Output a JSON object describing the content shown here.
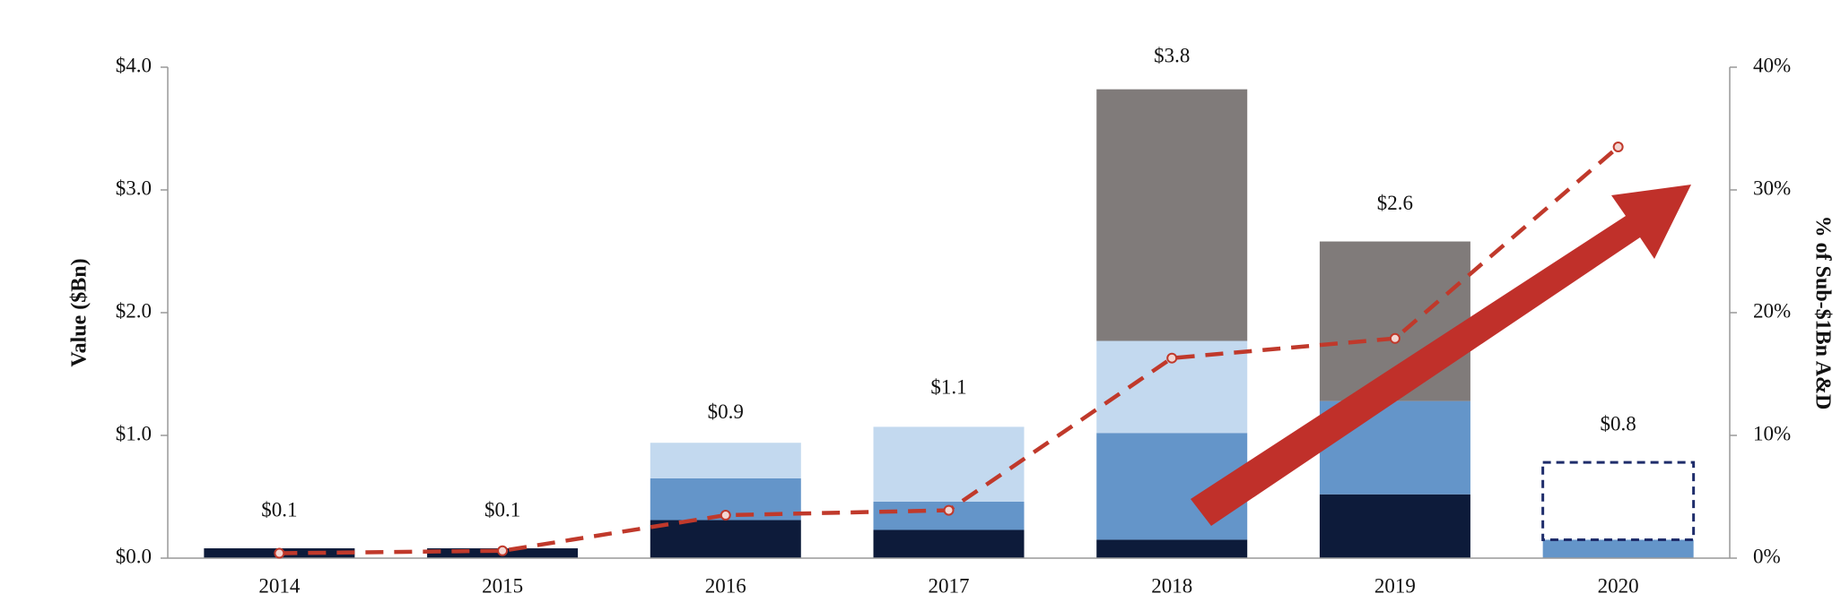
{
  "chart_data": {
    "type": "bar",
    "stacked": true,
    "y_label": "Value ($Bn)",
    "y2_label": "% of Sub-$1Bn A&D",
    "categories": [
      "2014",
      "2015",
      "2016",
      "2017",
      "2018",
      "2019",
      "2020"
    ],
    "series": [
      {
        "color": "#0d1b3a",
        "values": [
          0.08,
          0.08,
          0.31,
          0.23,
          0.15,
          0.52,
          0
        ]
      },
      {
        "color": "#6495c9",
        "values": [
          0,
          0,
          0.34,
          0.23,
          0.87,
          0.76,
          0.15
        ]
      },
      {
        "color": "#c3d9ef",
        "values": [
          0,
          0,
          0.29,
          0.61,
          0.75,
          0,
          0
        ]
      },
      {
        "color": "#807b7a",
        "values": [
          0,
          0,
          0,
          0,
          2.05,
          1.3,
          0
        ]
      },
      {
        "color": "#1f2d6b",
        "style": "dashed",
        "values": [
          null,
          null,
          null,
          null,
          null,
          null,
          0.63
        ]
      },
      {
        "type": "line",
        "axis": "y2",
        "color": "#c0392b",
        "style": "dashed",
        "values": [
          0.4,
          0.6,
          3.5,
          3.9,
          16.3,
          17.9,
          33.5
        ]
      }
    ],
    "totals": [
      0.1,
      0.1,
      0.9,
      1.1,
      3.8,
      2.6,
      0.8
    ],
    "total_labels": [
      "$0.1",
      "$0.1",
      "$0.9",
      "$1.1",
      "$3.8",
      "$2.6",
      "$0.8"
    ],
    "ylim": [
      0,
      4
    ],
    "yticks": [
      {
        "value": 0,
        "label": "$0.0"
      },
      {
        "value": 1,
        "label": "$1.0"
      },
      {
        "value": 2,
        "label": "$2.0"
      },
      {
        "value": 3,
        "label": "$3.0"
      },
      {
        "value": 4,
        "label": "$4.0"
      }
    ],
    "y2lim": [
      0,
      40
    ],
    "y2ticks": [
      {
        "value": 0,
        "label": "0%"
      },
      {
        "value": 10,
        "label": "10%"
      },
      {
        "value": 20,
        "label": "20%"
      },
      {
        "value": 30,
        "label": "30%"
      },
      {
        "value": 40,
        "label": "40%"
      }
    ],
    "grid": false
  }
}
